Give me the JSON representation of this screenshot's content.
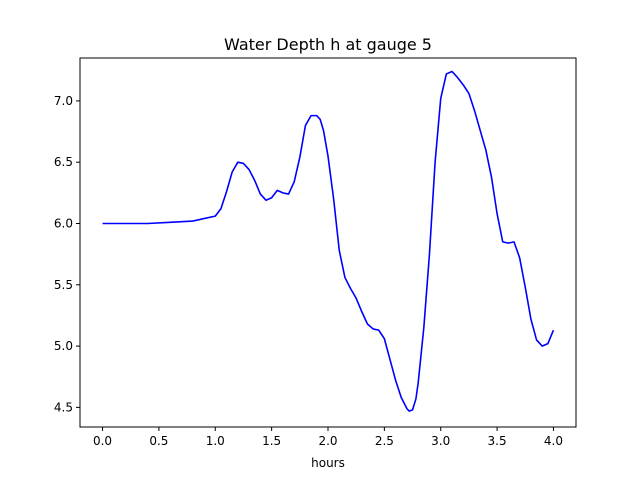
{
  "chart_data": {
    "type": "line",
    "title": "Water Depth h at gauge 5",
    "xlabel": "hours",
    "ylabel": "",
    "xlim": [
      -0.2,
      4.2
    ],
    "ylim": [
      4.34,
      7.35
    ],
    "xticks": [
      0.0,
      0.5,
      1.0,
      1.5,
      2.0,
      2.5,
      3.0,
      3.5,
      4.0
    ],
    "xtick_labels": [
      "0.0",
      "0.5",
      "1.0",
      "1.5",
      "2.0",
      "2.5",
      "3.0",
      "3.5",
      "4.0"
    ],
    "yticks": [
      4.5,
      5.0,
      5.5,
      6.0,
      6.5,
      7.0
    ],
    "ytick_labels": [
      "4.5",
      "5.0",
      "5.5",
      "6.0",
      "6.5",
      "7.0"
    ],
    "grid": false,
    "colors": {
      "line": "#0000ff",
      "axes": "#000000",
      "background": "#ffffff"
    },
    "series": [
      {
        "x": [
          0.0,
          0.2,
          0.4,
          0.6,
          0.8,
          0.9,
          1.0,
          1.05,
          1.1,
          1.15,
          1.2,
          1.25,
          1.3,
          1.35,
          1.4,
          1.45,
          1.5,
          1.55,
          1.6,
          1.65,
          1.7,
          1.75,
          1.8,
          1.85,
          1.9,
          1.93,
          1.96,
          2.0,
          2.05,
          2.1,
          2.15,
          2.2,
          2.25,
          2.3,
          2.35,
          2.4,
          2.45,
          2.5,
          2.55,
          2.6,
          2.65,
          2.7,
          2.72,
          2.75,
          2.78,
          2.8,
          2.85,
          2.9,
          2.95,
          3.0,
          3.05,
          3.1,
          3.12,
          3.15,
          3.2,
          3.25,
          3.3,
          3.35,
          3.4,
          3.45,
          3.5,
          3.55,
          3.6,
          3.65,
          3.7,
          3.75,
          3.8,
          3.85,
          3.9,
          3.95,
          4.0
        ],
        "y": [
          6.0,
          6.0,
          6.0,
          6.01,
          6.02,
          6.04,
          6.06,
          6.12,
          6.26,
          6.42,
          6.5,
          6.49,
          6.44,
          6.35,
          6.24,
          6.19,
          6.21,
          6.27,
          6.25,
          6.24,
          6.34,
          6.54,
          6.8,
          6.88,
          6.88,
          6.85,
          6.76,
          6.55,
          6.2,
          5.78,
          5.56,
          5.47,
          5.39,
          5.28,
          5.18,
          5.14,
          5.13,
          5.06,
          4.89,
          4.72,
          4.58,
          4.49,
          4.47,
          4.48,
          4.57,
          4.7,
          5.15,
          5.75,
          6.5,
          7.02,
          7.22,
          7.24,
          7.22,
          7.19,
          7.13,
          7.06,
          6.92,
          6.76,
          6.6,
          6.38,
          6.08,
          5.85,
          5.84,
          5.85,
          5.72,
          5.48,
          5.22,
          5.05,
          5.0,
          5.02,
          5.13
        ]
      }
    ]
  }
}
